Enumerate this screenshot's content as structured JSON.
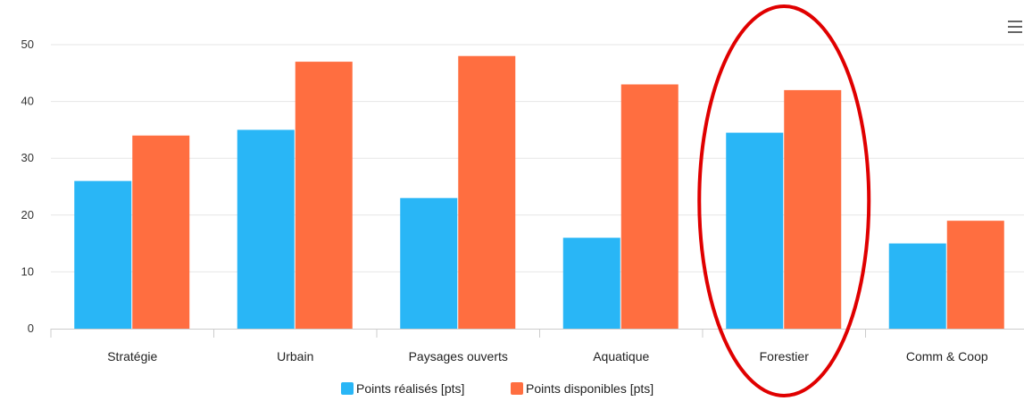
{
  "chart_data": {
    "type": "bar",
    "categories": [
      "Stratégie",
      "Urbain",
      "Paysages ouverts",
      "Aquatique",
      "Forestier",
      "Comm & Coop"
    ],
    "series": [
      {
        "name": "Points réalisés [pts]",
        "values": [
          26,
          35,
          23,
          16,
          34.5,
          15
        ],
        "color": "#29b6f6"
      },
      {
        "name": "Points disponibles [pts]",
        "values": [
          34,
          47,
          48,
          43,
          42,
          19
        ],
        "color": "#ff6e40"
      }
    ],
    "y_ticks": [
      "0",
      "10",
      "20",
      "30",
      "40",
      "50"
    ],
    "ylim": [
      0,
      50
    ],
    "grid": true,
    "legend": "bottom-center",
    "highlight": {
      "category": "Forestier",
      "color": "#e00000"
    },
    "menu_icon": "hamburger-menu-icon"
  }
}
